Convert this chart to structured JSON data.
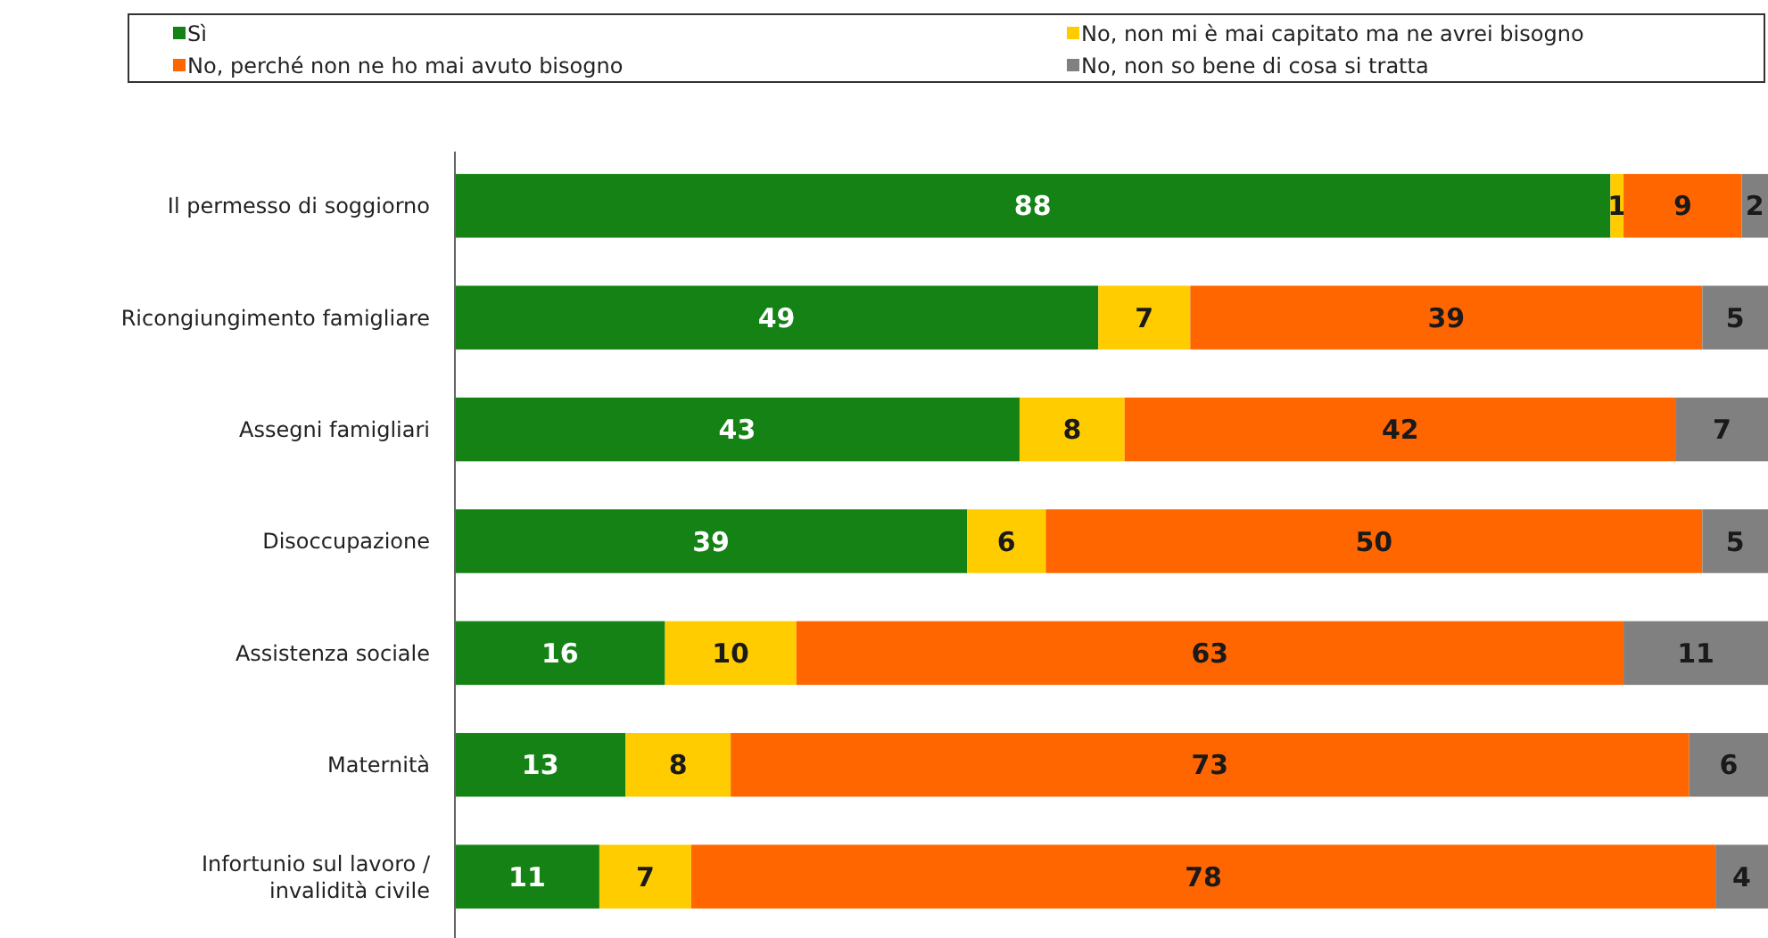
{
  "chart_data": {
    "type": "bar",
    "orientation": "horizontal",
    "stacked": true,
    "data_labels": true,
    "legend": "top",
    "categories": [
      "Il permesso di soggiorno",
      "Ricongiungimento famigliare",
      "Assegni famigliari",
      "Disoccupazione",
      "Assistenza sociale",
      "Maternità",
      "Infortunio sul lavoro / invalidità civile"
    ],
    "series": [
      {
        "name": "Sì",
        "color": "#148214",
        "values": [
          88,
          49,
          43,
          39,
          16,
          13,
          11
        ]
      },
      {
        "name": "No, non mi è mai capitato ma ne avrei bisogno",
        "color": "#ffcc00",
        "values": [
          1,
          7,
          8,
          6,
          10,
          8,
          7
        ]
      },
      {
        "name": "No, perché non ne ho mai avuto bisogno",
        "color": "#ff6600",
        "values": [
          9,
          39,
          42,
          50,
          63,
          73,
          78
        ]
      },
      {
        "name": "No, non so bene di cosa si tratta",
        "color": "#808080",
        "values": [
          2,
          5,
          7,
          5,
          11,
          6,
          4
        ]
      }
    ]
  }
}
